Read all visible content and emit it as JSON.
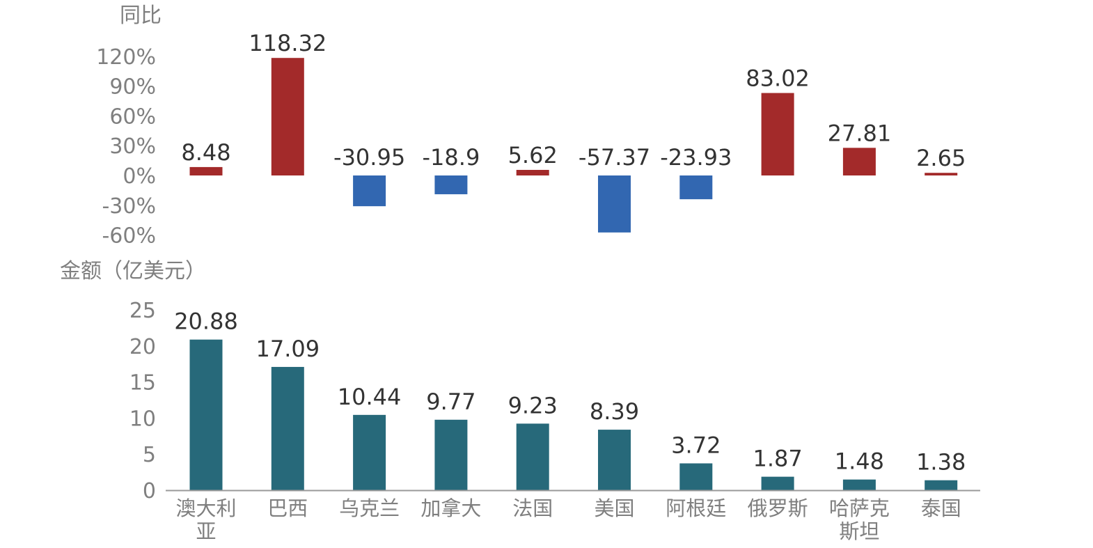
{
  "chart_data": [
    {
      "type": "bar",
      "ylabel": "同比",
      "categories": [
        "澳大利亚",
        "巴西",
        "乌克兰",
        "加拿大",
        "法国",
        "美国",
        "阿根廷",
        "俄罗斯",
        "哈萨克斯坦",
        "泰国"
      ],
      "values": [
        8.48,
        118.32,
        -30.95,
        -18.9,
        5.62,
        -57.37,
        -23.93,
        83.02,
        27.81,
        2.65
      ],
      "value_labels": [
        "8.48",
        "118.32",
        "-30.95",
        "-18.9",
        "5.62",
        "-57.37",
        "-23.93",
        "83.02",
        "27.81",
        "2.65"
      ],
      "ylim": [
        -60,
        120
      ],
      "yticks": [
        120,
        90,
        60,
        30,
        0,
        -30,
        -60
      ],
      "ytick_labels": [
        "120%",
        "90%",
        "60%",
        "30%",
        "0%",
        "-30%",
        "-60%"
      ],
      "grid": false,
      "colors": {
        "positive": "#a32a2a",
        "negative": "#3267b1"
      }
    },
    {
      "type": "bar",
      "ylabel": "金额（亿美元）",
      "categories": [
        "澳大利亚",
        "巴西",
        "乌克兰",
        "加拿大",
        "法国",
        "美国",
        "阿根廷",
        "俄罗斯",
        "哈萨克斯坦",
        "泰国"
      ],
      "category_lines": [
        [
          "澳大利",
          "亚"
        ],
        [
          "巴西"
        ],
        [
          "乌克兰"
        ],
        [
          "加拿大"
        ],
        [
          "法国"
        ],
        [
          "美国"
        ],
        [
          "阿根廷"
        ],
        [
          "俄罗斯"
        ],
        [
          "哈萨克",
          "斯坦"
        ],
        [
          "泰国"
        ]
      ],
      "values": [
        20.88,
        17.09,
        10.44,
        9.77,
        9.23,
        8.39,
        3.72,
        1.87,
        1.48,
        1.38
      ],
      "value_labels": [
        "20.88",
        "17.09",
        "10.44",
        "9.77",
        "9.23",
        "8.39",
        "3.72",
        "1.87",
        "1.48",
        "1.38"
      ],
      "ylim": [
        0,
        25
      ],
      "yticks": [
        25,
        20,
        15,
        10,
        5,
        0
      ],
      "ytick_labels": [
        "25",
        "20",
        "15",
        "10",
        "5",
        "0"
      ],
      "grid": false,
      "colors": {
        "bar": "#27697a",
        "axis": "#999999"
      }
    }
  ]
}
